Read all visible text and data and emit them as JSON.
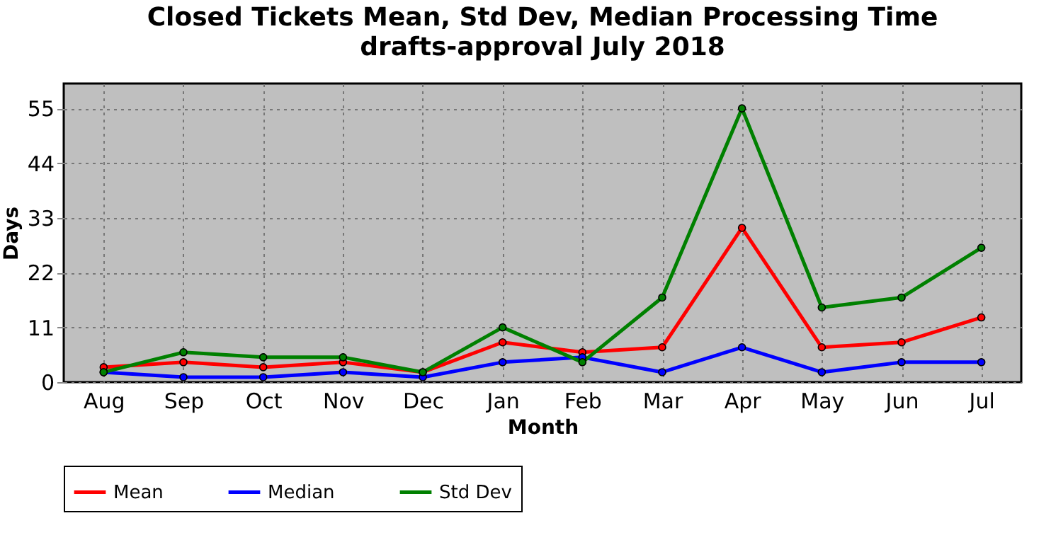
{
  "chart_data": {
    "type": "line",
    "title": "Closed Tickets Mean, Std Dev, Median Processing Time",
    "subtitle": "drafts-approval July 2018",
    "xlabel": "Month",
    "ylabel": "Days",
    "categories": [
      "Aug",
      "Sep",
      "Oct",
      "Nov",
      "Dec",
      "Jan",
      "Feb",
      "Mar",
      "Apr",
      "May",
      "Jun",
      "Jul"
    ],
    "series": [
      {
        "name": "Mean",
        "color": "#ff0000",
        "values": [
          3,
          4,
          3,
          4,
          2,
          8,
          6,
          7,
          31,
          7,
          8,
          13
        ]
      },
      {
        "name": "Median",
        "color": "#0000ff",
        "values": [
          2,
          1,
          1,
          2,
          1,
          4,
          5,
          2,
          7,
          2,
          4,
          4
        ]
      },
      {
        "name": "Std Dev",
        "color": "#008000",
        "values": [
          2,
          6,
          5,
          5,
          2,
          11,
          4,
          17,
          55,
          15,
          17,
          27
        ]
      }
    ],
    "ylim": [
      0,
      60
    ],
    "yticks": [
      0,
      11,
      22,
      33,
      44,
      55
    ],
    "grid": true,
    "legend": "bottom",
    "marker": "circle",
    "line_style": "solid"
  }
}
